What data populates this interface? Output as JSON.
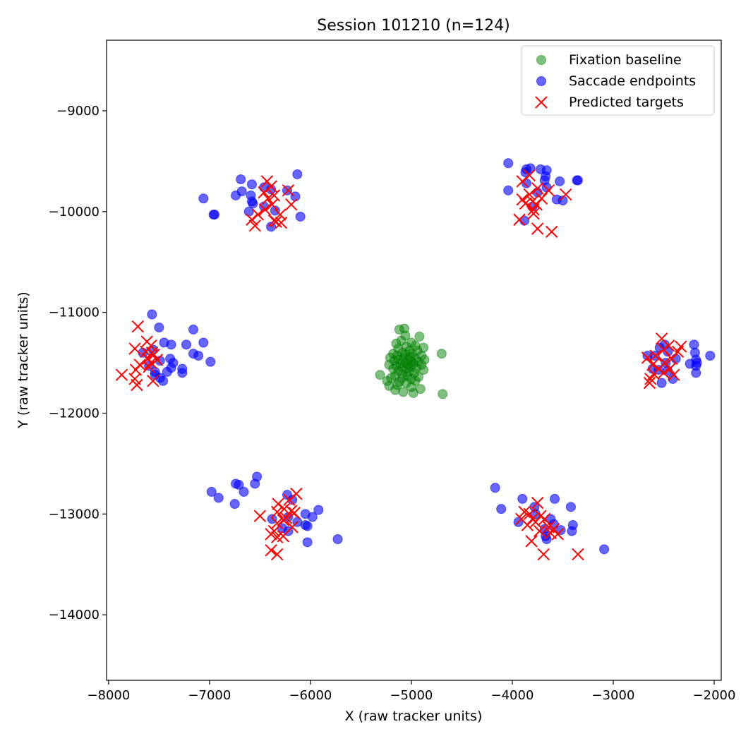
{
  "chart_data": {
    "type": "scatter",
    "title": "Session 101210 (n=124)",
    "xlabel": "X (raw tracker units)",
    "ylabel": "Y (raw tracker units)",
    "xlim": [
      -8020,
      -1930
    ],
    "ylim": [
      -14650,
      -8300
    ],
    "xticks": [
      -8000,
      -7000,
      -6000,
      -5000,
      -4000,
      -3000,
      -2000
    ],
    "yticks": [
      -9000,
      -10000,
      -11000,
      -12000,
      -13000,
      -14000
    ],
    "legend_position": "top-right",
    "series": [
      {
        "name": "Fixation baseline",
        "marker": "circle",
        "color": "#008000",
        "points": [
          [
            -5120,
            -11170
          ],
          [
            -5070,
            -11160
          ],
          [
            -5060,
            -11230
          ],
          [
            -4920,
            -11240
          ],
          [
            -5100,
            -11280
          ],
          [
            -5000,
            -11300
          ],
          [
            -5150,
            -11310
          ],
          [
            -4960,
            -11330
          ],
          [
            -5050,
            -11340
          ],
          [
            -4880,
            -11350
          ],
          [
            -5130,
            -11360
          ],
          [
            -5020,
            -11380
          ],
          [
            -4940,
            -11380
          ],
          [
            -5090,
            -11400
          ],
          [
            -5180,
            -11410
          ],
          [
            -4990,
            -11410
          ],
          [
            -4700,
            -11410
          ],
          [
            -5060,
            -11420
          ],
          [
            -5140,
            -11430
          ],
          [
            -4900,
            -11430
          ],
          [
            -5010,
            -11440
          ],
          [
            -5210,
            -11450
          ],
          [
            -5080,
            -11450
          ],
          [
            -4960,
            -11460
          ],
          [
            -5130,
            -11470
          ],
          [
            -5030,
            -11470
          ],
          [
            -4870,
            -11470
          ],
          [
            -5170,
            -11480
          ],
          [
            -5000,
            -11490
          ],
          [
            -4930,
            -11490
          ],
          [
            -5060,
            -11500
          ],
          [
            -5110,
            -11510
          ],
          [
            -4980,
            -11510
          ],
          [
            -5220,
            -11520
          ],
          [
            -5040,
            -11520
          ],
          [
            -4900,
            -11520
          ],
          [
            -5150,
            -11530
          ],
          [
            -5010,
            -11540
          ],
          [
            -5090,
            -11550
          ],
          [
            -4950,
            -11550
          ],
          [
            -5180,
            -11560
          ],
          [
            -5050,
            -11560
          ],
          [
            -4880,
            -11570
          ],
          [
            -5130,
            -11580
          ],
          [
            -5020,
            -11590
          ],
          [
            -4970,
            -11600
          ],
          [
            -5090,
            -11610
          ],
          [
            -5310,
            -11620
          ],
          [
            -5160,
            -11630
          ],
          [
            -5040,
            -11630
          ],
          [
            -4930,
            -11640
          ],
          [
            -5200,
            -11650
          ],
          [
            -5090,
            -11650
          ],
          [
            -5000,
            -11660
          ],
          [
            -4960,
            -11680
          ],
          [
            -5240,
            -11680
          ],
          [
            -5120,
            -11690
          ],
          [
            -5050,
            -11700
          ],
          [
            -5140,
            -11720
          ],
          [
            -5220,
            -11730
          ],
          [
            -5000,
            -11740
          ],
          [
            -4910,
            -11760
          ],
          [
            -5160,
            -11770
          ],
          [
            -5080,
            -11790
          ],
          [
            -4980,
            -11800
          ],
          [
            -4690,
            -11810
          ]
        ]
      },
      {
        "name": "Saccade endpoints",
        "marker": "circle",
        "color": "#0000ff",
        "points": [
          [
            -6130,
            -9630
          ],
          [
            -6690,
            -9680
          ],
          [
            -6580,
            -9730
          ],
          [
            -6460,
            -9760
          ],
          [
            -6390,
            -9780
          ],
          [
            -6680,
            -9800
          ],
          [
            -6230,
            -9790
          ],
          [
            -6740,
            -9840
          ],
          [
            -6590,
            -9840
          ],
          [
            -6150,
            -9850
          ],
          [
            -7060,
            -9870
          ],
          [
            -6580,
            -9900
          ],
          [
            -6570,
            -9920
          ],
          [
            -6460,
            -9950
          ],
          [
            -6350,
            -9990
          ],
          [
            -6610,
            -10000
          ],
          [
            -6960,
            -10030
          ],
          [
            -6950,
            -10030
          ],
          [
            -6100,
            -10050
          ],
          [
            -6390,
            -10150
          ],
          [
            -4040,
            -9520
          ],
          [
            -3860,
            -9580
          ],
          [
            -3820,
            -9570
          ],
          [
            -3720,
            -9580
          ],
          [
            -3660,
            -9590
          ],
          [
            -3870,
            -9610
          ],
          [
            -3670,
            -9650
          ],
          [
            -3680,
            -9690
          ],
          [
            -3360,
            -9690
          ],
          [
            -3350,
            -9690
          ],
          [
            -3530,
            -9700
          ],
          [
            -3860,
            -9720
          ],
          [
            -3660,
            -9760
          ],
          [
            -4040,
            -9790
          ],
          [
            -3750,
            -9810
          ],
          [
            -3560,
            -9880
          ],
          [
            -3500,
            -9890
          ],
          [
            -3800,
            -9950
          ],
          [
            -3880,
            -10090
          ],
          [
            -7570,
            -11020
          ],
          [
            -7500,
            -11150
          ],
          [
            -7160,
            -11170
          ],
          [
            -7450,
            -11300
          ],
          [
            -7380,
            -11320
          ],
          [
            -7230,
            -11320
          ],
          [
            -7060,
            -11300
          ],
          [
            -7560,
            -11370
          ],
          [
            -7660,
            -11400
          ],
          [
            -7160,
            -11410
          ],
          [
            -7110,
            -11430
          ],
          [
            -7390,
            -11460
          ],
          [
            -7490,
            -11480
          ],
          [
            -7360,
            -11500
          ],
          [
            -6990,
            -11490
          ],
          [
            -7600,
            -11530
          ],
          [
            -7380,
            -11550
          ],
          [
            -7270,
            -11560
          ],
          [
            -7540,
            -11590
          ],
          [
            -7420,
            -11590
          ],
          [
            -7270,
            -11600
          ],
          [
            -7540,
            -11620
          ],
          [
            -7490,
            -11650
          ],
          [
            -7460,
            -11680
          ],
          [
            -2490,
            -11320
          ],
          [
            -2200,
            -11320
          ],
          [
            -2540,
            -11350
          ],
          [
            -2460,
            -11390
          ],
          [
            -2190,
            -11400
          ],
          [
            -2590,
            -11430
          ],
          [
            -2660,
            -11430
          ],
          [
            -2040,
            -11430
          ],
          [
            -2380,
            -11460
          ],
          [
            -2180,
            -11470
          ],
          [
            -2170,
            -11500
          ],
          [
            -2480,
            -11500
          ],
          [
            -2240,
            -11510
          ],
          [
            -2180,
            -11530
          ],
          [
            -2610,
            -11560
          ],
          [
            -2550,
            -11570
          ],
          [
            -2460,
            -11580
          ],
          [
            -2180,
            -11600
          ],
          [
            -2410,
            -11660
          ],
          [
            -2520,
            -11700
          ],
          [
            -6530,
            -12630
          ],
          [
            -6740,
            -12700
          ],
          [
            -6710,
            -12710
          ],
          [
            -6550,
            -12700
          ],
          [
            -6980,
            -12780
          ],
          [
            -6660,
            -12780
          ],
          [
            -6910,
            -12840
          ],
          [
            -6230,
            -12810
          ],
          [
            -6750,
            -12900
          ],
          [
            -6180,
            -12860
          ],
          [
            -5920,
            -12960
          ],
          [
            -6050,
            -13000
          ],
          [
            -6220,
            -13030
          ],
          [
            -5980,
            -13030
          ],
          [
            -6380,
            -13050
          ],
          [
            -6130,
            -13080
          ],
          [
            -6050,
            -13110
          ],
          [
            -6030,
            -13120
          ],
          [
            -6280,
            -13140
          ],
          [
            -6220,
            -13170
          ],
          [
            -6030,
            -13280
          ],
          [
            -5730,
            -13250
          ],
          [
            -4170,
            -12740
          ],
          [
            -3900,
            -12850
          ],
          [
            -3580,
            -12850
          ],
          [
            -4110,
            -12950
          ],
          [
            -3780,
            -12930
          ],
          [
            -3420,
            -12930
          ],
          [
            -3770,
            -13000
          ],
          [
            -3620,
            -13050
          ],
          [
            -3940,
            -13080
          ],
          [
            -3590,
            -13100
          ],
          [
            -3400,
            -13110
          ],
          [
            -3680,
            -13150
          ],
          [
            -3520,
            -13160
          ],
          [
            -3410,
            -13170
          ],
          [
            -3670,
            -13220
          ],
          [
            -3660,
            -13250
          ],
          [
            -3090,
            -13350
          ]
        ]
      },
      {
        "name": "Predicted targets",
        "marker": "x",
        "color": "#ff0000",
        "points": [
          [
            -6430,
            -9700
          ],
          [
            -6390,
            -9750
          ],
          [
            -6460,
            -9810
          ],
          [
            -6220,
            -9790
          ],
          [
            -6360,
            -9840
          ],
          [
            -6420,
            -9870
          ],
          [
            -6380,
            -9930
          ],
          [
            -6190,
            -9930
          ],
          [
            -6450,
            -9980
          ],
          [
            -6520,
            -10030
          ],
          [
            -6300,
            -10030
          ],
          [
            -6580,
            -10080
          ],
          [
            -6360,
            -10090
          ],
          [
            -6340,
            -10100
          ],
          [
            -6290,
            -10110
          ],
          [
            -6550,
            -10140
          ],
          [
            -3830,
            -9640
          ],
          [
            -3900,
            -9700
          ],
          [
            -3750,
            -9770
          ],
          [
            -3640,
            -9790
          ],
          [
            -3830,
            -9830
          ],
          [
            -3470,
            -9830
          ],
          [
            -3900,
            -9880
          ],
          [
            -3710,
            -9870
          ],
          [
            -3800,
            -9900
          ],
          [
            -3870,
            -9920
          ],
          [
            -3760,
            -9930
          ],
          [
            -3790,
            -9980
          ],
          [
            -3790,
            -10020
          ],
          [
            -3930,
            -10080
          ],
          [
            -3750,
            -10170
          ],
          [
            -3610,
            -10200
          ],
          [
            -7710,
            -11140
          ],
          [
            -7620,
            -11290
          ],
          [
            -7580,
            -11330
          ],
          [
            -7740,
            -11360
          ],
          [
            -7630,
            -11390
          ],
          [
            -7570,
            -11400
          ],
          [
            -7550,
            -11420
          ],
          [
            -7610,
            -11460
          ],
          [
            -7520,
            -11470
          ],
          [
            -7580,
            -11500
          ],
          [
            -7690,
            -11520
          ],
          [
            -7600,
            -11540
          ],
          [
            -7730,
            -11570
          ],
          [
            -7870,
            -11620
          ],
          [
            -7740,
            -11660
          ],
          [
            -7560,
            -11680
          ],
          [
            -7720,
            -11720
          ],
          [
            -2520,
            -11260
          ],
          [
            -2450,
            -11330
          ],
          [
            -2330,
            -11340
          ],
          [
            -2500,
            -11370
          ],
          [
            -2360,
            -11390
          ],
          [
            -2580,
            -11430
          ],
          [
            -2660,
            -11450
          ],
          [
            -2420,
            -11460
          ],
          [
            -2490,
            -11500
          ],
          [
            -2610,
            -11520
          ],
          [
            -2550,
            -11560
          ],
          [
            -2440,
            -11560
          ],
          [
            -2500,
            -11600
          ],
          [
            -2600,
            -11610
          ],
          [
            -2400,
            -11620
          ],
          [
            -2630,
            -11660
          ],
          [
            -2640,
            -11700
          ],
          [
            -6140,
            -12800
          ],
          [
            -6210,
            -12860
          ],
          [
            -6320,
            -12900
          ],
          [
            -6260,
            -12950
          ],
          [
            -6190,
            -12970
          ],
          [
            -6330,
            -12980
          ],
          [
            -6160,
            -12990
          ],
          [
            -6500,
            -13020
          ],
          [
            -6240,
            -13040
          ],
          [
            -6270,
            -13060
          ],
          [
            -6330,
            -13090
          ],
          [
            -6180,
            -13130
          ],
          [
            -6360,
            -13170
          ],
          [
            -6390,
            -13200
          ],
          [
            -6270,
            -13220
          ],
          [
            -6330,
            -13230
          ],
          [
            -6390,
            -13360
          ],
          [
            -6330,
            -13400
          ],
          [
            -3750,
            -12890
          ],
          [
            -3880,
            -12980
          ],
          [
            -3830,
            -13000
          ],
          [
            -3720,
            -13020
          ],
          [
            -3910,
            -13050
          ],
          [
            -3800,
            -13050
          ],
          [
            -3680,
            -13050
          ],
          [
            -3770,
            -13080
          ],
          [
            -3850,
            -13110
          ],
          [
            -3640,
            -13130
          ],
          [
            -3590,
            -13150
          ],
          [
            -3730,
            -13170
          ],
          [
            -3620,
            -13190
          ],
          [
            -3550,
            -13200
          ],
          [
            -3810,
            -13270
          ],
          [
            -3690,
            -13400
          ],
          [
            -3350,
            -13400
          ]
        ]
      }
    ]
  }
}
